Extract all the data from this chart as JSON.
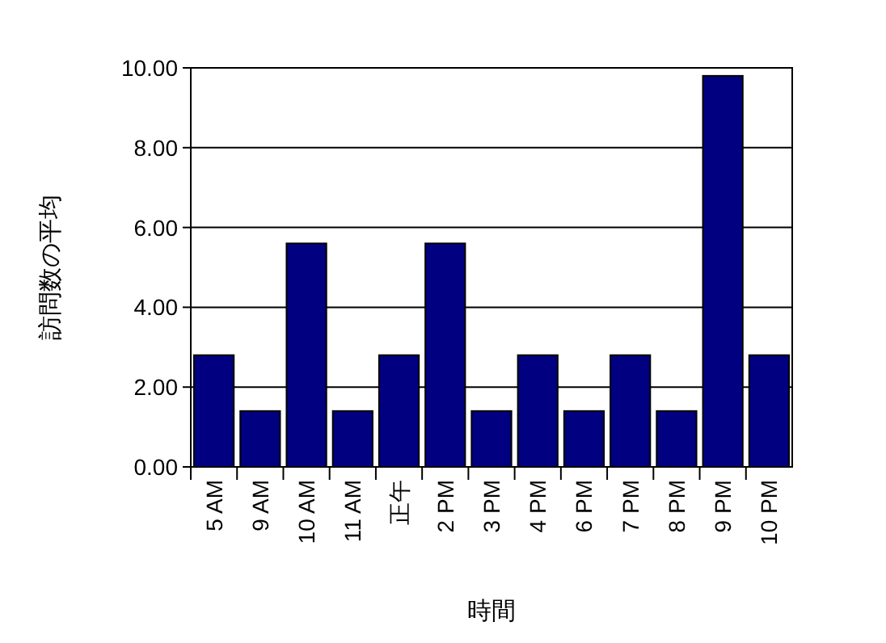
{
  "chart_data": {
    "type": "bar",
    "xlabel": "時間",
    "ylabel": "訪問数の平均",
    "categories": [
      "5 AM",
      "9 AM",
      "10 AM",
      "11 AM",
      "正午",
      "2 PM",
      "3 PM",
      "4 PM",
      "6 PM",
      "7 PM",
      "8 PM",
      "9 PM",
      "10 PM"
    ],
    "values": [
      2.8,
      1.4,
      5.6,
      1.4,
      2.8,
      5.6,
      1.4,
      2.8,
      1.4,
      2.8,
      1.4,
      9.8,
      2.8
    ],
    "color": "#000080",
    "ylim": [
      0,
      10
    ],
    "yticks": [
      {
        "value": 0,
        "label": "0.00"
      },
      {
        "value": 2,
        "label": "2.00"
      },
      {
        "value": 4,
        "label": "4.00"
      },
      {
        "value": 6,
        "label": "6.00"
      },
      {
        "value": 8,
        "label": "8.00"
      },
      {
        "value": 10,
        "label": "10.00"
      }
    ],
    "grid": "y"
  }
}
